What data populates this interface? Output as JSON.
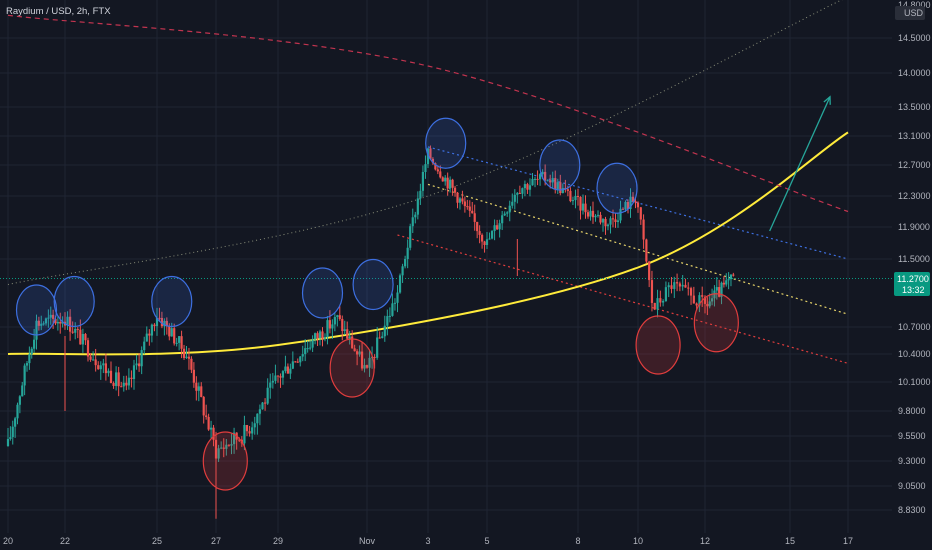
{
  "header": {
    "symbol_line": "Raydium / USD, 2h, FTX"
  },
  "price_axis": {
    "currency": "USD",
    "labels": [
      "14.5000",
      "14.0000",
      "13.5000",
      "13.1000",
      "12.7000",
      "12.3000",
      "11.9000",
      "11.5000",
      "10.7000",
      "10.4000",
      "10.1000",
      "9.8000",
      "9.5500",
      "9.3000",
      "9.0500",
      "8.8300"
    ],
    "top_cut_label": "14.8000"
  },
  "time_axis": {
    "labels": [
      "20",
      "22",
      "25",
      "27",
      "29",
      "Nov",
      "3",
      "5",
      "8",
      "10",
      "12",
      "15",
      "17"
    ]
  },
  "last_price": {
    "value": "11.2700",
    "countdown": "13:32",
    "color": "#089981"
  },
  "colors": {
    "up": "#26a69a",
    "down": "#ef5350",
    "background": "#131722",
    "grid": "#1f2433",
    "curve": "#ffeb3b",
    "upper_trend": "#3d6fe0",
    "mid_trend": "#e6d36a",
    "lower_trend": "#e03d3d",
    "arrow": "#26a69a"
  },
  "chart_data": {
    "type": "candlestick",
    "title": "",
    "symbol": "Raydium / USD",
    "timeframe": "2h",
    "exchange": "FTX",
    "ylim": [
      8.75,
      14.9
    ],
    "x_ticks": [
      "20",
      "22",
      "25",
      "27",
      "29",
      "Nov",
      "3",
      "5",
      "8",
      "10",
      "12",
      "15",
      "17"
    ],
    "grid": true,
    "approx_path": [
      {
        "x": "Oct 20",
        "close": 9.45
      },
      {
        "x": "Oct 21",
        "close": 10.75
      },
      {
        "x": "Oct 22",
        "close": 10.8
      },
      {
        "x": "Oct 23",
        "close": 10.35
      },
      {
        "x": "Oct 24",
        "close": 10.0
      },
      {
        "x": "Oct 25",
        "close": 10.85
      },
      {
        "x": "Oct 26",
        "close": 10.4
      },
      {
        "x": "Oct 27",
        "close": 9.4
      },
      {
        "x": "Oct 28",
        "close": 9.6
      },
      {
        "x": "Oct 29",
        "close": 10.15
      },
      {
        "x": "Oct 30",
        "close": 10.5
      },
      {
        "x": "Oct 31",
        "close": 10.8
      },
      {
        "x": "Nov 1",
        "close": 10.2
      },
      {
        "x": "Nov 2",
        "close": 11.1
      },
      {
        "x": "Nov 3",
        "close": 12.85
      },
      {
        "x": "Nov 4",
        "close": 12.3
      },
      {
        "x": "Nov 5",
        "close": 11.7
      },
      {
        "x": "Nov 6",
        "close": 12.4
      },
      {
        "x": "Nov 7",
        "close": 12.55
      },
      {
        "x": "Nov 8",
        "close": 12.2
      },
      {
        "x": "Nov 9",
        "close": 11.95
      },
      {
        "x": "Nov 10",
        "close": 12.3
      },
      {
        "x": "Nov 10",
        "close": 10.9
      },
      {
        "x": "Nov 11",
        "close": 11.2
      },
      {
        "x": "Nov 12",
        "close": 10.95
      },
      {
        "x": "Nov 13",
        "close": 11.27
      }
    ],
    "annotations": [
      {
        "kind": "ellipse",
        "color": "blue",
        "near": "Oct 21 high",
        "price": 10.9
      },
      {
        "kind": "ellipse",
        "color": "blue",
        "near": "Oct 22 high",
        "price": 11.0
      },
      {
        "kind": "ellipse",
        "color": "blue",
        "near": "Oct 25 high",
        "price": 11.0
      },
      {
        "kind": "ellipse",
        "color": "red",
        "near": "Oct 27 low",
        "price": 9.3
      },
      {
        "kind": "ellipse",
        "color": "blue",
        "near": "Oct 31 high",
        "price": 11.1
      },
      {
        "kind": "ellipse",
        "color": "red",
        "near": "Nov 1 low",
        "price": 10.25
      },
      {
        "kind": "ellipse",
        "color": "blue",
        "near": "Nov 2 high",
        "price": 11.2
      },
      {
        "kind": "ellipse",
        "color": "blue",
        "near": "Nov 3 high",
        "price": 13.0
      },
      {
        "kind": "ellipse",
        "color": "blue",
        "near": "Nov 7 high",
        "price": 12.7
      },
      {
        "kind": "ellipse",
        "color": "blue",
        "near": "Nov 9 high",
        "price": 12.4
      },
      {
        "kind": "ellipse",
        "color": "red",
        "near": "Nov 10 low",
        "price": 10.5
      },
      {
        "kind": "ellipse",
        "color": "red",
        "near": "Nov 12 low",
        "price": 10.75
      },
      {
        "kind": "trendline",
        "style": "dotted",
        "color": "blue",
        "from": {
          "x": "Nov 3",
          "price": 12.95
        },
        "to": {
          "x": "Nov 17",
          "price": 11.5
        }
      },
      {
        "kind": "trendline",
        "style": "dotted",
        "color": "yellow",
        "from": {
          "x": "Nov 3",
          "price": 12.45
        },
        "to": {
          "x": "Nov 17",
          "price": 10.85
        }
      },
      {
        "kind": "trendline",
        "style": "dotted",
        "color": "red",
        "from": {
          "x": "Nov 2",
          "price": 11.8
        },
        "to": {
          "x": "Nov 17",
          "price": 10.3
        }
      },
      {
        "kind": "curve",
        "style": "solid",
        "color": "yellow",
        "points": [
          {
            "x": "Oct 20",
            "price": 10.4
          },
          {
            "x": "Oct 29",
            "price": 10.5
          },
          {
            "x": "Nov 10",
            "price": 11.4
          },
          {
            "x": "Nov 17",
            "price": 13.15
          }
        ]
      },
      {
        "kind": "curve",
        "style": "dashed",
        "color": "red",
        "points": [
          {
            "x": "Oct 20",
            "price": 14.7
          },
          {
            "x": "Nov 3",
            "price": 14.1
          },
          {
            "x": "Nov 17",
            "price": 12.1
          }
        ]
      },
      {
        "kind": "curve",
        "style": "dotted",
        "color": "gray",
        "points": [
          {
            "x": "Oct 20",
            "price": 11.2
          },
          {
            "x": "Nov 3",
            "price": 12.3
          },
          {
            "x": "Nov 17",
            "price": 14.9
          }
        ]
      },
      {
        "kind": "arrow",
        "color": "teal",
        "from": {
          "x": "Nov 14",
          "price": 11.85
        },
        "to": {
          "x": "Nov 15",
          "price": 13.65
        }
      }
    ]
  }
}
